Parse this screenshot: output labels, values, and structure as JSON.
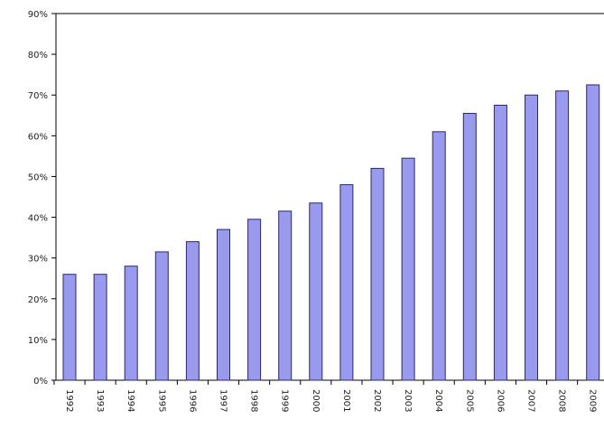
{
  "chart_data": {
    "type": "bar",
    "title": "",
    "xlabel": "",
    "ylabel": "",
    "ylim": [
      0,
      90
    ],
    "y_ticks": [
      "0%",
      "10%",
      "20%",
      "30%",
      "40%",
      "50%",
      "60%",
      "70%",
      "80%",
      "90%"
    ],
    "categories": [
      "1992",
      "1993",
      "1994",
      "1995",
      "1996",
      "1997",
      "1998",
      "1999",
      "2000",
      "2001",
      "2002",
      "2003",
      "2004",
      "2005",
      "2006",
      "2007",
      "2008",
      "2009"
    ],
    "values": [
      26,
      26,
      28,
      31.5,
      34,
      37,
      39.5,
      41.5,
      43.5,
      48,
      52,
      54.5,
      61,
      65.5,
      67.5,
      70,
      71,
      72.5
    ],
    "grid": false,
    "legend": "none",
    "colors": {
      "bar_fill": "#9999ee",
      "bar_stroke": "#2a2a6a",
      "axis": "#000000"
    }
  }
}
